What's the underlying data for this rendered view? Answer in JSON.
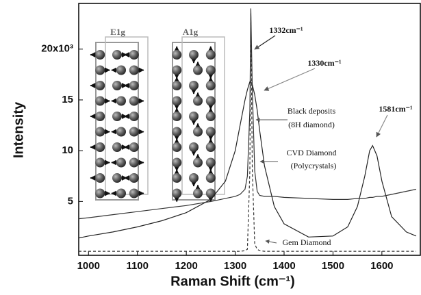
{
  "chart_data": {
    "type": "line",
    "xlabel": "Raman Shift (cm⁻¹)",
    "ylabel": "Intensity",
    "xlim": [
      980,
      1680
    ],
    "ylim": [
      -0.3,
      24.5
    ],
    "xticks": [
      1000,
      1100,
      1200,
      1300,
      1400,
      1500,
      1600
    ],
    "yticks": [
      5,
      10,
      15,
      {
        "value": 20,
        "label": "20x10³"
      }
    ],
    "x": [
      980,
      1000,
      1050,
      1100,
      1150,
      1200,
      1250,
      1280,
      1300,
      1310,
      1320,
      1325,
      1330,
      1332,
      1335,
      1340,
      1345,
      1350,
      1360,
      1380,
      1400,
      1450,
      1500,
      1530,
      1550,
      1565,
      1575,
      1581,
      1590,
      1600,
      1620,
      1650,
      1670
    ],
    "series": [
      {
        "name": "Black deposits",
        "sublabel": "(8H diamond)",
        "color": "#222222",
        "dashed": false,
        "values": [
          1.4,
          1.6,
          2.0,
          2.5,
          3.1,
          3.9,
          5.2,
          7.0,
          10.0,
          12.5,
          15.0,
          16.0,
          16.8,
          16.8,
          16.5,
          15.5,
          14.0,
          12.0,
          8.5,
          4.5,
          2.8,
          1.5,
          1.6,
          2.5,
          4.5,
          7.5,
          10.0,
          10.5,
          9.5,
          7.0,
          3.5,
          2.0,
          1.6
        ]
      },
      {
        "name": "CVD Diamond",
        "sublabel": "(Polycrystals)",
        "color": "#333333",
        "dashed": false,
        "values": [
          3.3,
          3.4,
          3.7,
          4.0,
          4.3,
          4.6,
          5.0,
          5.3,
          5.5,
          5.7,
          6.2,
          7.5,
          14.0,
          24.0,
          16.0,
          8.0,
          6.0,
          5.6,
          5.5,
          5.5,
          5.4,
          5.3,
          5.2,
          5.2,
          5.3,
          5.3,
          5.4,
          5.4,
          5.5,
          5.5,
          5.7,
          6.0,
          6.2
        ]
      },
      {
        "name": "Gem Diamond",
        "color": "#333333",
        "dashed": true,
        "values": [
          0.1,
          0.1,
          0.1,
          0.1,
          0.1,
          0.1,
          0.1,
          0.1,
          0.1,
          0.1,
          0.15,
          0.3,
          8.0,
          23.5,
          8.0,
          0.8,
          0.3,
          0.15,
          0.1,
          0.1,
          0.1,
          0.1,
          0.1,
          0.1,
          0.1,
          0.1,
          0.1,
          0.1,
          0.1,
          0.1,
          0.1,
          0.1,
          0.1
        ]
      }
    ],
    "annotations": [
      "1332cm⁻¹",
      "1330cm⁻¹",
      "1581cm⁻¹"
    ],
    "inset_labels": [
      "E1g",
      "A1g"
    ]
  }
}
